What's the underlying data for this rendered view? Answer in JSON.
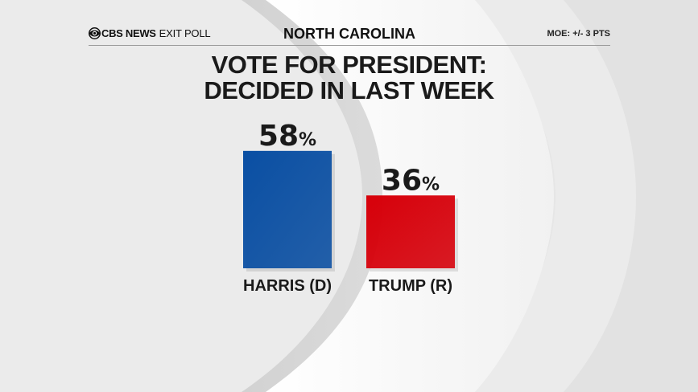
{
  "header": {
    "brand_strong": "CBS NEWS",
    "brand_light": "EXIT POLL",
    "state": "NORTH CAROLINA",
    "moe": "MOE: +/- 3 PTS"
  },
  "title": {
    "line1": "VOTE FOR PRESIDENT:",
    "line2": "DECIDED IN LAST WEEK"
  },
  "colors": {
    "harris": "#0a4fa3",
    "trump": "#d7000a",
    "text": "#1a1a1a"
  },
  "chart_data": {
    "type": "bar",
    "categories": [
      "HARRIS (D)",
      "TRUMP (R)"
    ],
    "values": [
      58,
      36
    ],
    "value_suffix": "%",
    "ylim": [
      0,
      100
    ],
    "grid": false
  }
}
